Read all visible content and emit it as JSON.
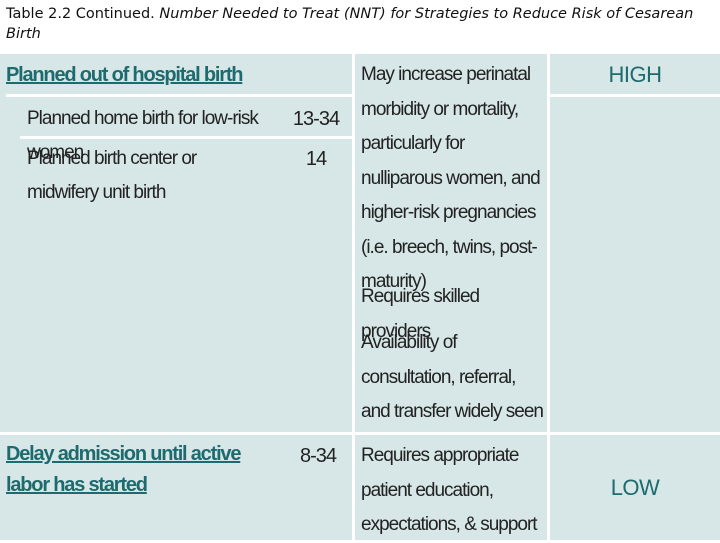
{
  "caption": {
    "lead": "Table 2.2 Continued. ",
    "title": "Number Needed to Treat (NNT) for Strategies to Reduce Risk of Cesarean Birth"
  },
  "colors": {
    "accent": "#1d6b6f",
    "row_bg": "#d7e6e6"
  },
  "rows": [
    {
      "strategy": "Planned out of hospital birth",
      "subitems": [
        {
          "label": "Planned home birth for low-risk women",
          "nnt": "13-34"
        },
        {
          "label": "Planned birth center or midwifery unit birth",
          "nnt": "14"
        }
      ],
      "considerations": [
        "May increase perinatal morbidity or mortality, particularly for nulliparous women, and higher-risk pregnancies (i.e. breech, twins, post-maturity)",
        "Requires skilled providers",
        "Availability of consultation, referral, and transfer widely seen as enhancing safety"
      ],
      "rating": "HIGH"
    },
    {
      "strategy": "Delay admission until active labor has started",
      "nnt": "8-34",
      "considerations": [
        "Requires appropriate patient education, expectations, & support"
      ],
      "rating": "LOW"
    }
  ]
}
